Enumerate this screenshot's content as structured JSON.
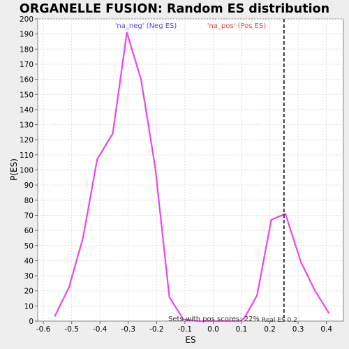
{
  "chart_data": {
    "type": "line",
    "title": "ORGANELLE FUSION: Random ES distribution",
    "xlabel": "ES",
    "ylabel": "P(ES)",
    "xlim": [
      -0.62,
      0.46
    ],
    "ylim": [
      0,
      200
    ],
    "x_ticks": [
      -0.6,
      -0.5,
      -0.4,
      -0.3,
      -0.2,
      -0.1,
      0.0,
      0.1,
      0.2,
      0.3,
      0.4
    ],
    "x_tick_labels": [
      "-0.6",
      "-0.5",
      "-0.4",
      "-0.3",
      "-0.2",
      "-0.1",
      "0.0",
      "0.1",
      "0.2",
      "0.3",
      "0.4"
    ],
    "y_ticks": [
      0,
      10,
      20,
      30,
      40,
      50,
      60,
      70,
      80,
      90,
      100,
      110,
      120,
      130,
      140,
      150,
      160,
      170,
      180,
      190,
      200
    ],
    "grid": true,
    "series": [
      {
        "color": "#ee44ee",
        "x": [
          -0.56,
          -0.51,
          -0.46,
          -0.41,
          -0.355,
          -0.305,
          -0.255,
          -0.205,
          -0.155,
          -0.105,
          -0.055,
          -0.005,
          0.045,
          0.095,
          0.11,
          0.155,
          0.205,
          0.255,
          0.31,
          0.36,
          0.41
        ],
        "y": [
          3,
          22,
          55,
          107,
          124,
          191,
          160,
          102,
          16,
          1,
          0,
          0,
          0,
          0,
          2,
          17,
          67,
          71,
          39,
          20,
          5
        ]
      }
    ],
    "legend": {
      "neg_label": "'na_neg' (Neg ES)",
      "pos_label": "'na_pos' (Pos ES)",
      "neg_color": "#4a4adf",
      "pos_color": "#e04848"
    },
    "real_es": 0.25,
    "real_es_label": "Real ES 0.2",
    "pos_scores_label": "Sets with pos scores: 22%"
  }
}
